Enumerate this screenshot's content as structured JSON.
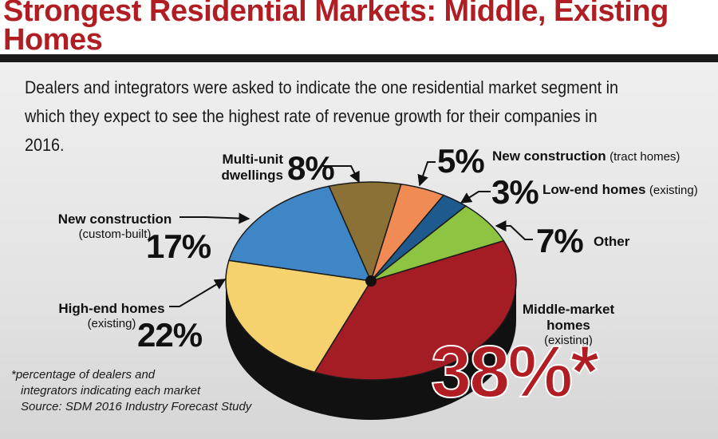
{
  "title": "Strongest Residential Markets: Middle, Existing Homes",
  "subtitle": "Dealers and integrators were asked to indicate the one residential market segment in which they expect to see the highest rate of revenue growth for their companies in 2016.",
  "footnote": {
    "line1": "*percentage of dealers and",
    "line2": "integrators indicating each market",
    "line3": "Source: SDM 2016 Industry Forecast Study"
  },
  "colors": {
    "title": "#b01e23",
    "middle_market": "#a51d24",
    "high_end": "#f5d26e",
    "custom_built": "#3f86c6",
    "multi_unit": "#8b7136",
    "tract": "#f18b55",
    "low_end": "#1e5a8e",
    "other": "#8dc542"
  },
  "chart_data": {
    "type": "pie",
    "title": "Strongest Residential Markets: Middle, Existing Homes",
    "unit": "%",
    "slices": [
      {
        "label": "Middle-market homes",
        "sublabel": "(existing)",
        "value": 38,
        "display": "38%*",
        "color": "#a51d24"
      },
      {
        "label": "High-end homes",
        "sublabel": "(existing)",
        "value": 22,
        "display": "22%",
        "color": "#f5d26e"
      },
      {
        "label": "New construction",
        "sublabel": "(custom-built)",
        "value": 17,
        "display": "17%",
        "color": "#3f86c6"
      },
      {
        "label": "Multi-unit dwellings",
        "sublabel": "",
        "value": 8,
        "display": "8%",
        "color": "#8b7136"
      },
      {
        "label": "New construction",
        "sublabel": "(tract homes)",
        "value": 5,
        "display": "5%",
        "color": "#f18b55"
      },
      {
        "label": "Low-end homes",
        "sublabel": "(existing)",
        "value": 3,
        "display": "3%",
        "color": "#1e5a8e"
      },
      {
        "label": "Other",
        "sublabel": "",
        "value": 7,
        "display": "7%",
        "color": "#8dc542"
      }
    ]
  },
  "labels": {
    "multi_unit_line1": "Multi-unit",
    "multi_unit_line2": "dwellings",
    "multi_unit_pct": "8%",
    "tract_pct": "5%",
    "tract_name": "New construction",
    "tract_sub": "(tract homes)",
    "low_end_pct": "3%",
    "low_end_name": "Low-end homes",
    "low_end_sub": "(existing)",
    "other_pct": "7%",
    "other_name": "Other",
    "custom_name": "New construction",
    "custom_sub": "(custom-built)",
    "custom_pct": "17%",
    "high_end_name": "High-end homes",
    "high_end_sub": "(existing)",
    "high_end_pct": "22%",
    "middle_line1": "Middle-market",
    "middle_line2": "homes",
    "middle_sub": "(existing)",
    "middle_pct": "38%*"
  }
}
